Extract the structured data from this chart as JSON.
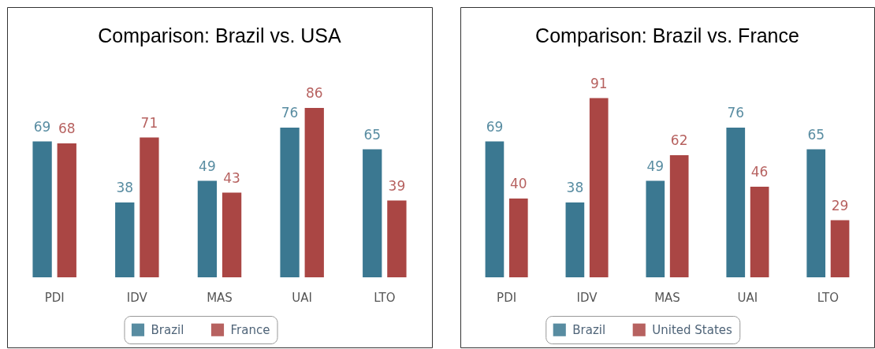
{
  "chart_data": [
    {
      "type": "bar",
      "title": "Comparison: Brazil vs. USA",
      "categories": [
        "PDI",
        "IDV",
        "MAS",
        "UAI",
        "LTO"
      ],
      "series": [
        {
          "name": "Brazil",
          "color": "#3b7891",
          "values": [
            69,
            38,
            49,
            76,
            65
          ]
        },
        {
          "name": "France",
          "color": "#aa4644",
          "values": [
            68,
            71,
            43,
            86,
            39
          ]
        }
      ],
      "data_labels": true,
      "legend": "bottom",
      "tick_labels": "x"
    },
    {
      "type": "bar",
      "title": "Comparison: Brazil vs. France",
      "categories": [
        "PDI",
        "IDV",
        "MAS",
        "UAI",
        "LTO"
      ],
      "series": [
        {
          "name": "Brazil",
          "color": "#3b7891",
          "values": [
            69,
            38,
            49,
            76,
            65
          ]
        },
        {
          "name": "United States",
          "color": "#aa4644",
          "values": [
            40,
            91,
            62,
            46,
            29
          ]
        }
      ],
      "data_labels": true,
      "legend": "bottom",
      "tick_labels": "x"
    }
  ]
}
